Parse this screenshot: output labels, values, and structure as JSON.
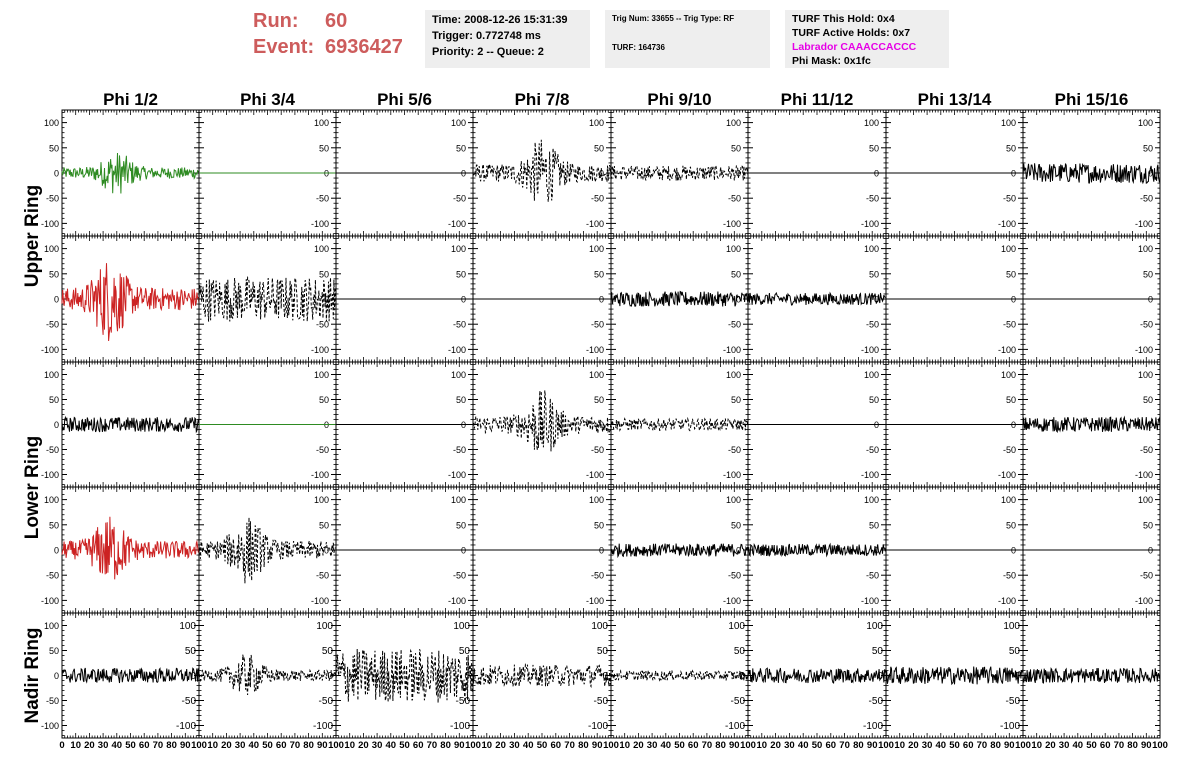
{
  "header": {
    "run_label": "Run:",
    "run_value": "60",
    "event_label": "Event:",
    "event_value": "6936427",
    "info_box_1": {
      "time": "Time: 2008-12-26 15:31:39",
      "trigger": "Trigger: 0.772748 ms",
      "priority": "Priority: 2 -- Queue: 2"
    },
    "info_box_2": {
      "trig": "Trig Num: 33655 -- Trig Type: RF",
      "turf": "TURF: 164736"
    },
    "info_box_3": {
      "this_hold": "TURF This Hold: 0x4",
      "active_holds": "TURF Active Holds: 0x7",
      "labrador": "Labrador CAAACCACCC",
      "phi_mask": "Phi Mask: 0x1fc"
    }
  },
  "chart_data": {
    "type": "line",
    "columns": [
      "Phi 1/2",
      "Phi 3/4",
      "Phi 5/6",
      "Phi 7/8",
      "Phi 9/10",
      "Phi 11/12",
      "Phi 13/14",
      "Phi 15/16"
    ],
    "ring_labels": [
      "Upper Ring",
      "Lower Ring",
      "Nadir Ring"
    ],
    "xlim": [
      0,
      100
    ],
    "ylim": [
      -125,
      125
    ],
    "ytick_values": [
      -100,
      -50,
      0,
      50,
      100
    ],
    "ytick_labels": [
      "-100",
      "-50",
      "0",
      "50",
      "100"
    ],
    "xtick_values": [
      0,
      10,
      20,
      30,
      40,
      50,
      60,
      70,
      80,
      90,
      100
    ],
    "xtick_labels": [
      "0",
      "10",
      "20",
      "30",
      "40",
      "50",
      "60",
      "70",
      "80",
      "90",
      "100"
    ],
    "colors": {
      "green": "#2e8b22",
      "red": "#cc2222",
      "black": "#000000"
    },
    "panels": [
      [
        {
          "amp": 25,
          "color": "green",
          "style": "solid",
          "burst": 40
        },
        {
          "amp": 0,
          "color": "green",
          "style": "solid"
        },
        {
          "amp": 0,
          "color": "black",
          "style": "solid"
        },
        {
          "amp": 40,
          "color": "black",
          "style": "dashed",
          "burst": 50
        },
        {
          "amp": 15,
          "color": "black",
          "style": "dashed"
        },
        {
          "amp": 0,
          "color": "black",
          "style": "solid"
        },
        {
          "amp": 0,
          "color": "black",
          "style": "solid"
        },
        {
          "amp": 20,
          "color": "black",
          "style": "solid"
        }
      ],
      [
        {
          "amp": 50,
          "color": "red",
          "style": "solid",
          "burst": 35
        },
        {
          "amp": 45,
          "color": "black",
          "style": "dashed"
        },
        {
          "amp": 0,
          "color": "black",
          "style": "solid"
        },
        {
          "amp": 0,
          "color": "black",
          "style": "solid"
        },
        {
          "amp": 15,
          "color": "black",
          "style": "solid"
        },
        {
          "amp": 12,
          "color": "black",
          "style": "solid"
        },
        {
          "amp": 0,
          "color": "black",
          "style": "solid"
        },
        {
          "amp": 0,
          "color": "black",
          "style": "solid"
        }
      ],
      [
        {
          "amp": 15,
          "color": "black",
          "style": "solid"
        },
        {
          "amp": 0,
          "color": "green",
          "style": "solid"
        },
        {
          "amp": 0,
          "color": "black",
          "style": "solid"
        },
        {
          "amp": 40,
          "color": "black",
          "style": "dashed",
          "burst": 50
        },
        {
          "amp": 12,
          "color": "black",
          "style": "dashed"
        },
        {
          "amp": 0,
          "color": "black",
          "style": "solid"
        },
        {
          "amp": 0,
          "color": "black",
          "style": "solid"
        },
        {
          "amp": 15,
          "color": "black",
          "style": "solid"
        }
      ],
      [
        {
          "amp": 40,
          "color": "red",
          "style": "solid",
          "burst": 35
        },
        {
          "amp": 40,
          "color": "black",
          "style": "dashed",
          "burst": 35
        },
        {
          "amp": 0,
          "color": "black",
          "style": "solid"
        },
        {
          "amp": 0,
          "color": "black",
          "style": "solid"
        },
        {
          "amp": 13,
          "color": "black",
          "style": "solid"
        },
        {
          "amp": 12,
          "color": "black",
          "style": "solid"
        },
        {
          "amp": 0,
          "color": "black",
          "style": "solid"
        },
        {
          "amp": 0,
          "color": "black",
          "style": "solid"
        }
      ],
      [
        {
          "amp": 15,
          "color": "black",
          "style": "solid"
        },
        {
          "amp": 25,
          "color": "black",
          "style": "dashed",
          "burst": 35
        },
        {
          "amp": 55,
          "color": "black",
          "style": "dashed"
        },
        {
          "amp": 22,
          "color": "black",
          "style": "dashed"
        },
        {
          "amp": 10,
          "color": "black",
          "style": "dashed"
        },
        {
          "amp": 15,
          "color": "black",
          "style": "solid"
        },
        {
          "amp": 18,
          "color": "black",
          "style": "solid"
        },
        {
          "amp": 15,
          "color": "black",
          "style": "solid"
        }
      ]
    ]
  }
}
